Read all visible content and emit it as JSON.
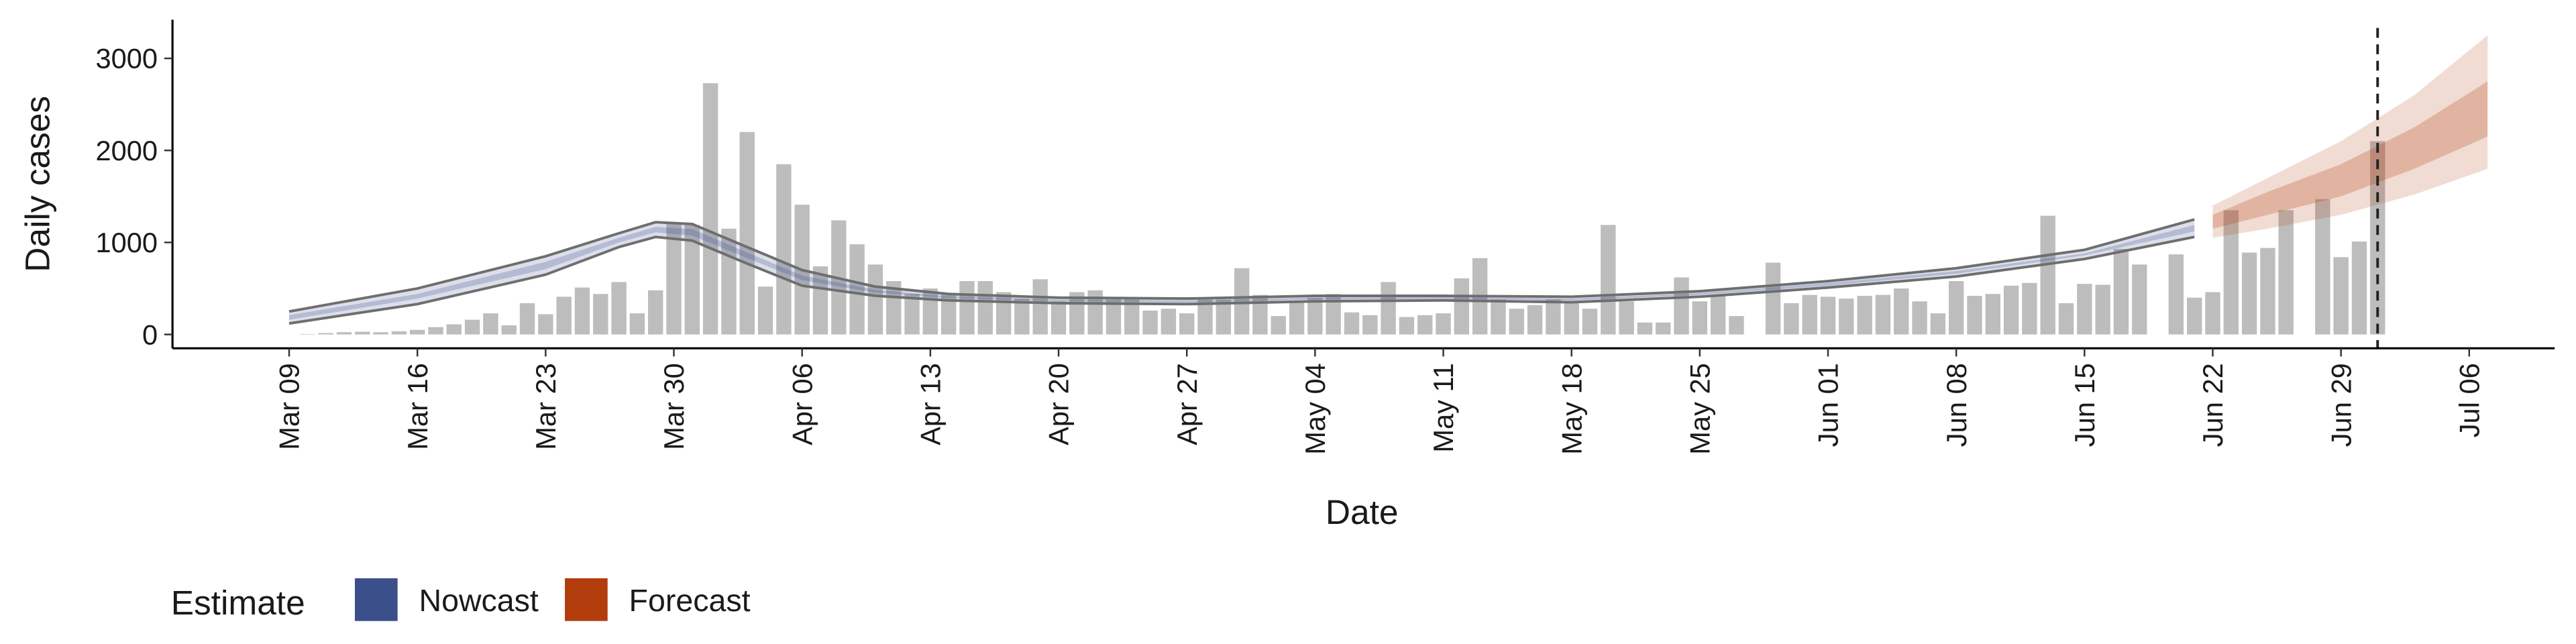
{
  "chart_data": {
    "type": "bar",
    "x_label": "Date",
    "y_label": "Daily cases",
    "categories": [
      "Mar 09",
      null,
      null,
      null,
      null,
      null,
      null,
      "Mar 16",
      null,
      null,
      null,
      null,
      null,
      null,
      "Mar 23",
      null,
      null,
      null,
      null,
      null,
      null,
      "Mar 30",
      null,
      null,
      null,
      null,
      null,
      null,
      "Apr 06",
      null,
      null,
      null,
      null,
      null,
      null,
      "Apr 13",
      null,
      null,
      null,
      null,
      null,
      null,
      "Apr 20",
      null,
      null,
      null,
      null,
      null,
      null,
      "Apr 27",
      null,
      null,
      null,
      null,
      null,
      null,
      "May 04",
      null,
      null,
      null,
      null,
      null,
      null,
      "May 11",
      null,
      null,
      null,
      null,
      null,
      null,
      "May 18",
      null,
      null,
      null,
      null,
      null,
      null,
      "May 25",
      null,
      null,
      null,
      null,
      null,
      null,
      "Jun 01",
      null,
      null,
      null,
      null,
      null,
      null,
      "Jun 08",
      null,
      null,
      null,
      null,
      null,
      null,
      "Jun 15",
      null,
      null,
      null,
      null,
      null,
      null,
      "Jun 22",
      null,
      null,
      null,
      null,
      null,
      null,
      "Jun 29",
      null,
      null,
      null,
      null,
      null,
      null,
      "Jul 06"
    ],
    "values": [
      0,
      5,
      15,
      25,
      30,
      25,
      35,
      50,
      80,
      110,
      160,
      230,
      100,
      340,
      220,
      410,
      510,
      440,
      570,
      230,
      480,
      1210,
      1190,
      2730,
      1150,
      2200,
      520,
      1850,
      1410,
      740,
      1240,
      980,
      760,
      580,
      440,
      500,
      440,
      580,
      580,
      460,
      390,
      600,
      360,
      460,
      480,
      380,
      390,
      260,
      280,
      230,
      380,
      380,
      720,
      430,
      200,
      350,
      400,
      440,
      240,
      210,
      570,
      190,
      210,
      230,
      610,
      830,
      380,
      280,
      320,
      380,
      350,
      280,
      1190,
      360,
      130,
      130,
      620,
      360,
      430,
      200,
      null,
      780,
      340,
      430,
      410,
      390,
      420,
      430,
      500,
      360,
      230,
      580,
      420,
      440,
      530,
      560,
      1290,
      340,
      550,
      540,
      930,
      760,
      null,
      870,
      400,
      460,
      1350,
      890,
      940,
      1350,
      null,
      1470,
      840,
      1010,
      2100,
      null,
      null,
      null,
      null,
      null
    ],
    "color": "#bdbdbd",
    "ylim": [
      -150,
      3420
    ],
    "yticks": [
      0,
      1000,
      2000,
      3000
    ],
    "vline": 114,
    "legend_title": "Estimate",
    "bands": [
      {
        "name": "Nowcast",
        "color": "#3b4f8a",
        "x": [
          0,
          7,
          14,
          18,
          20,
          22,
          25,
          28,
          32,
          36,
          42,
          49,
          56,
          63,
          70,
          77,
          84,
          91,
          98,
          104
        ],
        "lower90": [
          120,
          330,
          650,
          950,
          1060,
          1020,
          770,
          530,
          420,
          370,
          340,
          330,
          360,
          370,
          350,
          410,
          510,
          630,
          820,
          1060
        ],
        "upper90": [
          250,
          500,
          850,
          1100,
          1220,
          1200,
          950,
          700,
          520,
          440,
          400,
          390,
          420,
          420,
          410,
          470,
          580,
          720,
          920,
          1250
        ],
        "lower50": [
          160,
          390,
          710,
          1000,
          1110,
          1075,
          830,
          590,
          455,
          395,
          360,
          350,
          380,
          385,
          370,
          430,
          530,
          660,
          860,
          1120
        ],
        "upper50": [
          210,
          440,
          790,
          1050,
          1170,
          1145,
          890,
          640,
          485,
          415,
          380,
          370,
          400,
          405,
          390,
          450,
          560,
          690,
          880,
          1190
        ]
      },
      {
        "name": "Forecast",
        "color": "#b33c0c",
        "x": [
          105,
          108,
          112,
          116,
          120
        ],
        "lower90": [
          1050,
          1150,
          1300,
          1520,
          1800
        ],
        "upper90": [
          1400,
          1700,
          2100,
          2600,
          3250
        ],
        "lower50": [
          1150,
          1300,
          1500,
          1800,
          2150
        ],
        "upper50": [
          1300,
          1550,
          1850,
          2250,
          2750
        ]
      }
    ]
  }
}
